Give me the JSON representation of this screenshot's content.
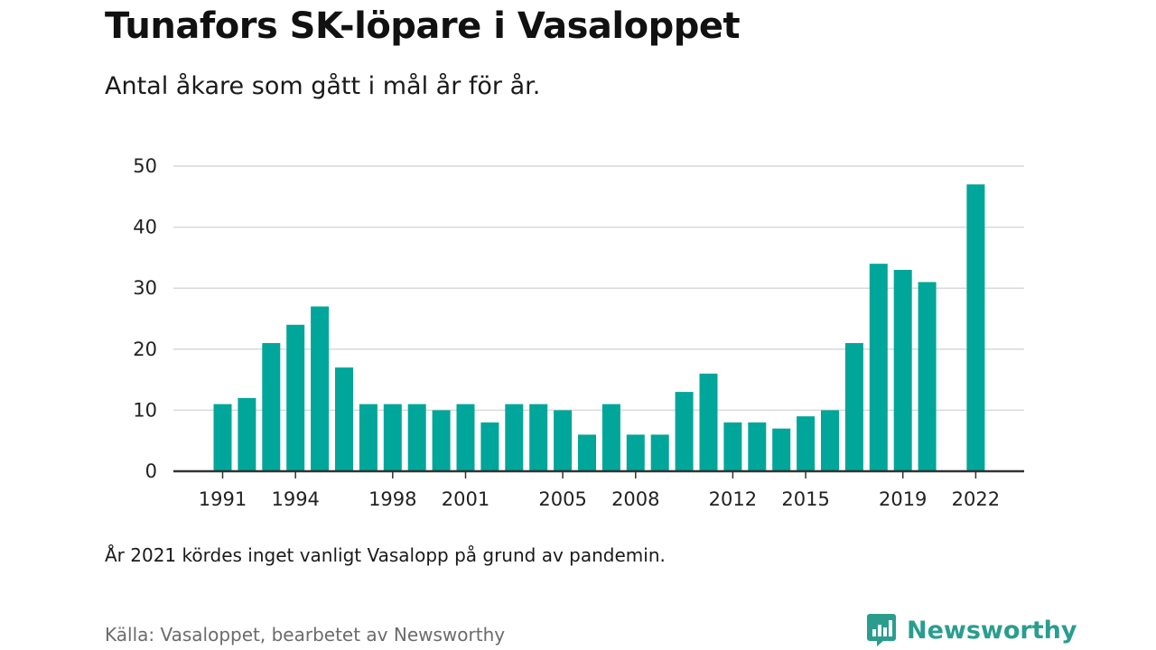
{
  "header": {
    "title": "Tunafors SK-löpare i Vasaloppet",
    "subtitle": "Antal åkare som gått i mål år för år."
  },
  "footer": {
    "note": "År 2021 kördes inget vanligt Vasalopp på grund av pandemin.",
    "source": "Källa: Vasaloppet, bearbetet av Newsworthy",
    "brand": "Newsworthy"
  },
  "colors": {
    "bar": "#00a699",
    "grid": "#d9d9d9",
    "axis": "#333333",
    "brand": "#2a9d8f"
  },
  "chart_data": {
    "type": "bar",
    "title": "Tunafors SK-löpare i Vasaloppet",
    "subtitle": "Antal åkare som gått i mål år för år.",
    "xlabel": "",
    "ylabel": "",
    "ylim": [
      0,
      50
    ],
    "yticks": [
      0,
      10,
      20,
      30,
      40,
      50
    ],
    "xticks": [
      "1991",
      "1994",
      "1998",
      "2001",
      "2005",
      "2008",
      "2012",
      "2015",
      "2019",
      "2022"
    ],
    "grid": true,
    "categories": [
      "1991",
      "1992",
      "1993",
      "1994",
      "1995",
      "1996",
      "1997",
      "1998",
      "1999",
      "2000",
      "2001",
      "2002",
      "2003",
      "2004",
      "2005",
      "2006",
      "2007",
      "2008",
      "2009",
      "2010",
      "2011",
      "2012",
      "2013",
      "2014",
      "2015",
      "2016",
      "2017",
      "2018",
      "2019",
      "2020",
      "2021",
      "2022"
    ],
    "values": [
      11,
      12,
      21,
      24,
      27,
      17,
      11,
      11,
      11,
      10,
      11,
      8,
      11,
      11,
      10,
      6,
      11,
      6,
      6,
      13,
      16,
      8,
      8,
      7,
      9,
      10,
      21,
      34,
      33,
      31,
      null,
      47
    ]
  }
}
